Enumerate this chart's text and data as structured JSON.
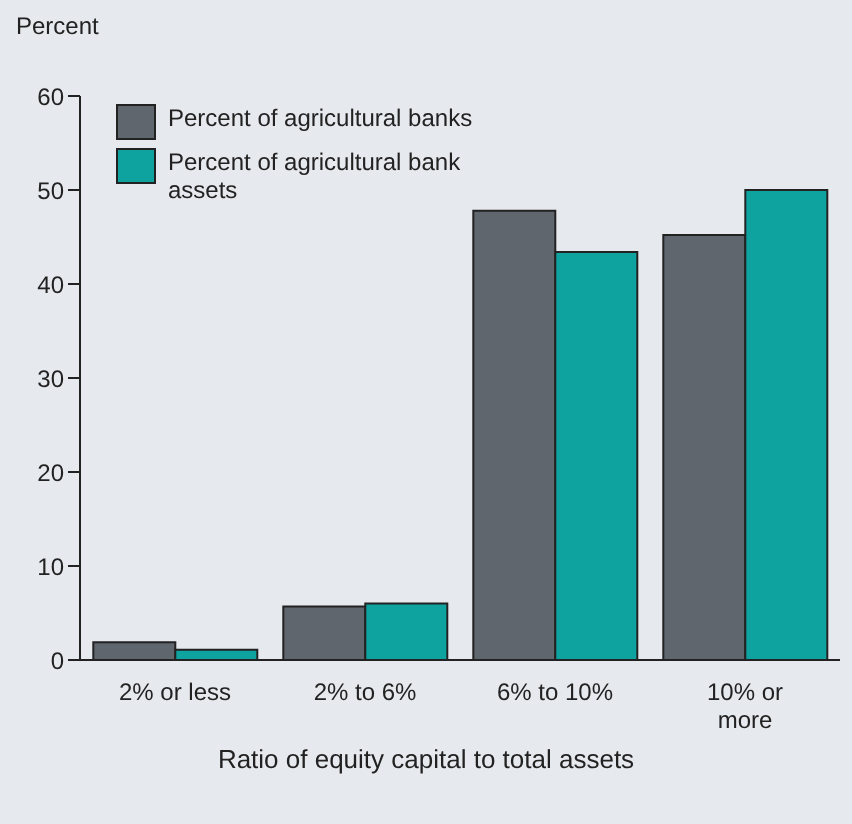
{
  "chart_data": {
    "type": "bar",
    "ylabel": "Percent",
    "xlabel": "Ratio of equity capital to total assets",
    "categories": [
      "2% or less",
      "2% to 6%",
      "6% to 10%",
      "10% or more"
    ],
    "series": [
      {
        "name": "Percent of agricultural banks",
        "color": "#5f666e",
        "values": [
          1.9,
          5.7,
          47.8,
          45.2
        ]
      },
      {
        "name": "Percent of agricultural bank assets",
        "color": "#0fa3a0",
        "values": [
          1.1,
          6,
          43.4,
          50
        ]
      }
    ],
    "ylim": [
      0,
      60
    ],
    "yticks": [
      0,
      10,
      20,
      30,
      40,
      50,
      60
    ],
    "grid": false,
    "legend": "top left"
  }
}
